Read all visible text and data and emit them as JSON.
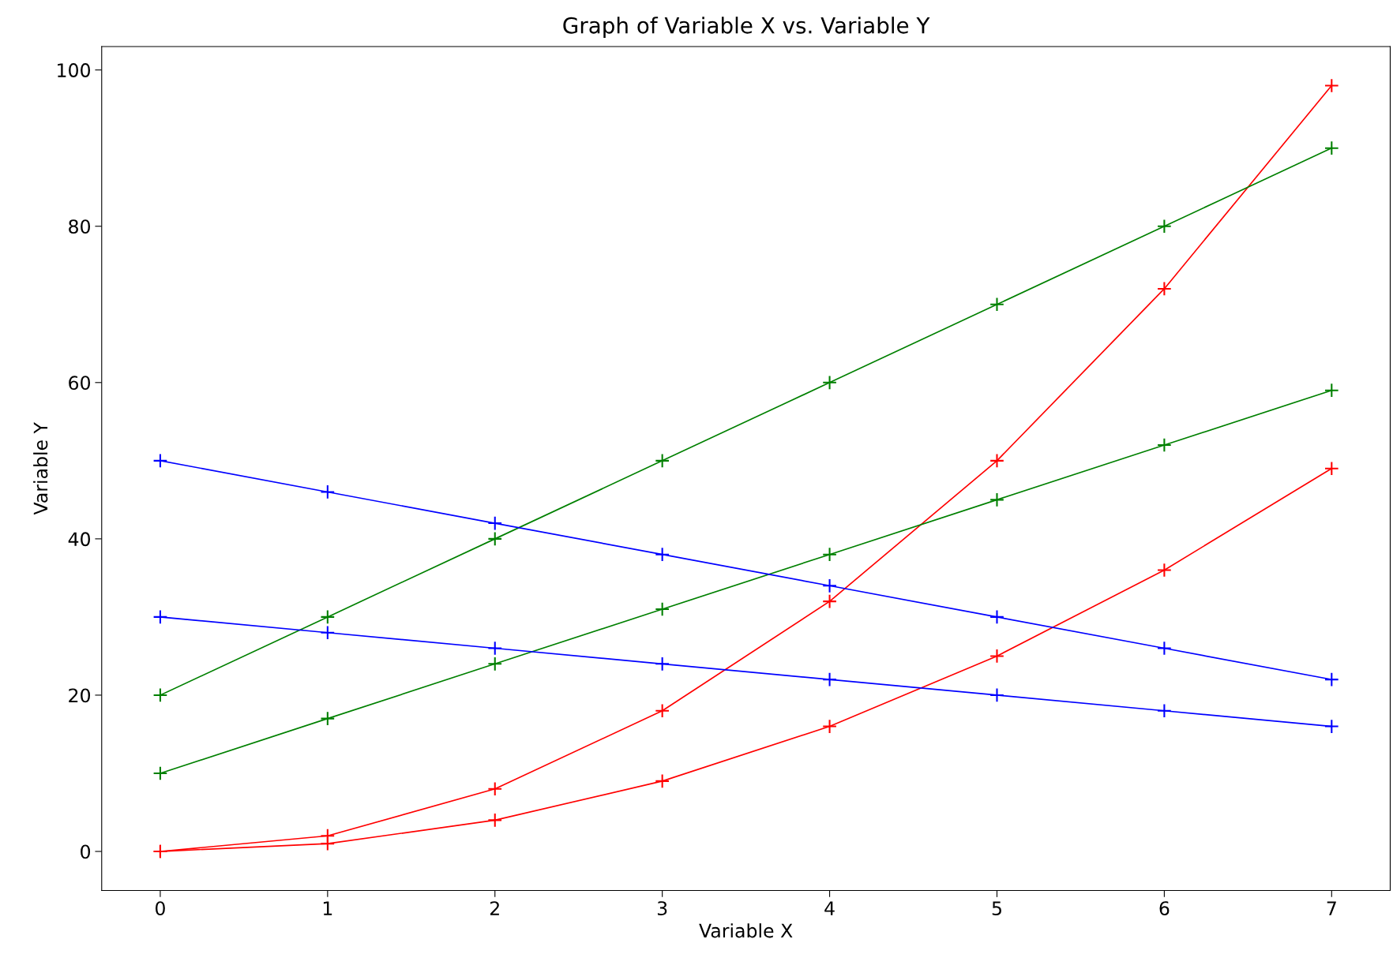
{
  "chart_data": {
    "type": "line",
    "title": "Graph of Variable X vs. Variable Y",
    "xlabel": "Variable X",
    "ylabel": "Variable Y",
    "x": [
      0,
      1,
      2,
      3,
      4,
      5,
      6,
      7
    ],
    "series": [
      {
        "color": "#ff0000",
        "values": [
          0,
          2,
          8,
          18,
          32,
          50,
          72,
          98
        ]
      },
      {
        "color": "#ff0000",
        "values": [
          0,
          1,
          4,
          9,
          16,
          25,
          36,
          49
        ]
      },
      {
        "color": "#008000",
        "values": [
          20,
          30,
          40,
          50,
          60,
          70,
          80,
          90
        ]
      },
      {
        "color": "#008000",
        "values": [
          10,
          17,
          24,
          31,
          38,
          45,
          52,
          59
        ]
      },
      {
        "color": "#0000ff",
        "values": [
          50,
          46,
          42,
          38,
          34,
          30,
          26,
          22
        ]
      },
      {
        "color": "#0000ff",
        "values": [
          30,
          28,
          26,
          24,
          22,
          20,
          18,
          16
        ]
      }
    ],
    "xlim": [
      -0.35,
      7.35
    ],
    "ylim": [
      -5,
      103
    ],
    "xticks": [
      0,
      1,
      2,
      3,
      4,
      5,
      6,
      7
    ],
    "yticks": [
      0,
      20,
      40,
      60,
      80,
      100
    ],
    "marker": "cross",
    "line_style": "solid",
    "grid": false
  }
}
